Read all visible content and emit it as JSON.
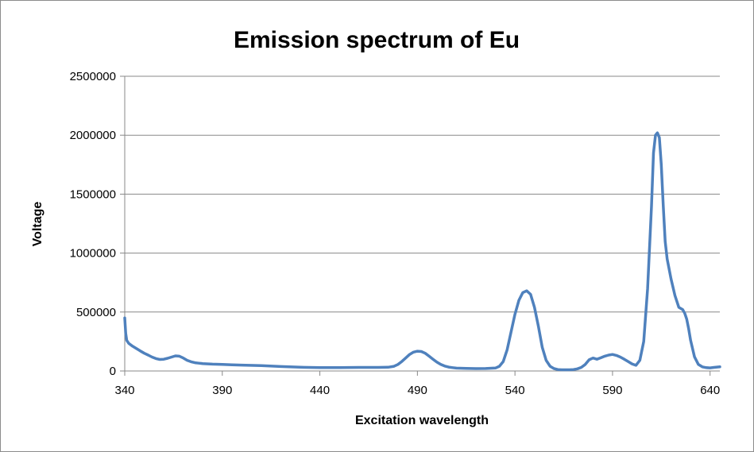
{
  "chart_data": {
    "type": "line",
    "title": "Emission spectrum of Eu",
    "xlabel": "Excitation wavelength",
    "ylabel": "Voltage",
    "xlim": [
      340,
      645
    ],
    "ylim": [
      0,
      2500000
    ],
    "x_ticks": [
      "340",
      "390",
      "440",
      "490",
      "540",
      "590",
      "640"
    ],
    "y_ticks": [
      "0",
      "500000",
      "1000000",
      "1500000",
      "2000000",
      "2500000"
    ],
    "grid": true,
    "legend": "none",
    "series_color": "#4f81bd",
    "series": [
      {
        "x": [
          340,
          340.5,
          341,
          342,
          344,
          346,
          348,
          350,
          352,
          354,
          356,
          358,
          360,
          362,
          364,
          366,
          368,
          370,
          372,
          374,
          376,
          378,
          380,
          385,
          390,
          395,
          400,
          410,
          420,
          430,
          440,
          450,
          460,
          470,
          475,
          478,
          480,
          482,
          484,
          486,
          488,
          490,
          492,
          494,
          496,
          498,
          500,
          502,
          504,
          506,
          508,
          510,
          515,
          520,
          525,
          530,
          532,
          534,
          536,
          538,
          540,
          542,
          544,
          546,
          548,
          550,
          552,
          554,
          556,
          558,
          560,
          562,
          564,
          566,
          568,
          570,
          572,
          574,
          576,
          578,
          580,
          582,
          584,
          586,
          588,
          590,
          592,
          594,
          596,
          598,
          600,
          602,
          604,
          606,
          608,
          610,
          611,
          612,
          613,
          614,
          615,
          616,
          617,
          618,
          620,
          622,
          624,
          626,
          627,
          628,
          629,
          630,
          632,
          634,
          636,
          638,
          640,
          642,
          645
        ],
        "y": [
          450000,
          320000,
          260000,
          235000,
          210000,
          190000,
          170000,
          150000,
          135000,
          118000,
          105000,
          98000,
          100000,
          108000,
          118000,
          128000,
          125000,
          110000,
          90000,
          78000,
          70000,
          66000,
          63000,
          58000,
          55000,
          52000,
          50000,
          45000,
          38000,
          32000,
          28000,
          28000,
          30000,
          30000,
          32000,
          40000,
          55000,
          80000,
          110000,
          140000,
          160000,
          168000,
          165000,
          150000,
          125000,
          100000,
          75000,
          55000,
          42000,
          33000,
          28000,
          24000,
          22000,
          20000,
          21000,
          25000,
          40000,
          80000,
          180000,
          330000,
          480000,
          600000,
          665000,
          680000,
          650000,
          540000,
          380000,
          200000,
          90000,
          40000,
          20000,
          12000,
          10000,
          10000,
          10000,
          12000,
          18000,
          30000,
          55000,
          95000,
          110000,
          100000,
          112000,
          125000,
          135000,
          140000,
          132000,
          118000,
          100000,
          80000,
          60000,
          48000,
          90000,
          250000,
          700000,
          1400000,
          1850000,
          2000000,
          2020000,
          1980000,
          1750000,
          1400000,
          1100000,
          950000,
          780000,
          640000,
          540000,
          520000,
          490000,
          440000,
          360000,
          260000,
          120000,
          55000,
          35000,
          28000,
          26000,
          30000,
          35000
        ]
      }
    ]
  }
}
